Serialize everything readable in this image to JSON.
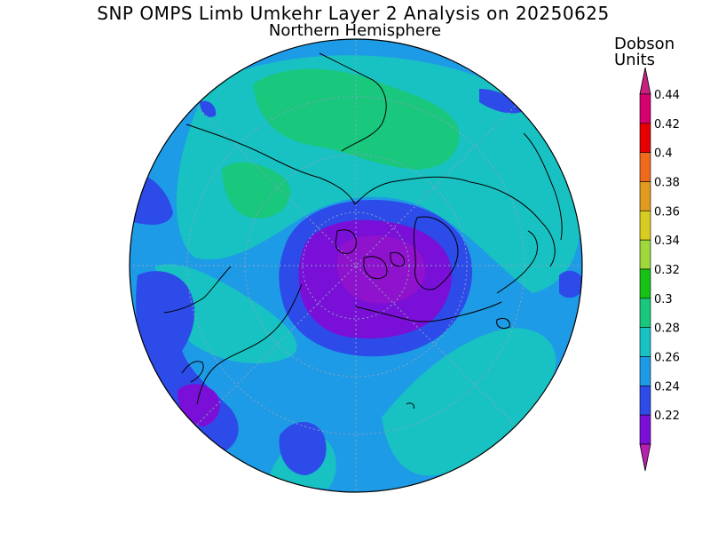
{
  "title": "SNP OMPS Limb Umkehr Layer 2 Analysis on 20250625",
  "subtitle": "Northern Hemisphere",
  "units_line1": "Dobson",
  "units_line2": "Units",
  "colorbar": {
    "levels": [
      {
        "label": "0.44",
        "color": "#d6006f"
      },
      {
        "label": "0.42",
        "color": "#e60000"
      },
      {
        "label": "0.4",
        "color": "#ef6a1a"
      },
      {
        "label": "0.38",
        "color": "#e09a20"
      },
      {
        "label": "0.36",
        "color": "#d8cc20"
      },
      {
        "label": "0.34",
        "color": "#9fd83a"
      },
      {
        "label": "0.32",
        "color": "#16c216"
      },
      {
        "label": "0.3",
        "color": "#19c77d"
      },
      {
        "label": "0.28",
        "color": "#19c2c2"
      },
      {
        "label": "0.26",
        "color": "#1e9be6"
      },
      {
        "label": "0.24",
        "color": "#2c4be8"
      },
      {
        "label": "0.22",
        "color": "#7a10d8"
      }
    ],
    "bottom_color": "#b820b0",
    "top_color": "#c8207f"
  },
  "map": {
    "projection": "north polar stereographic",
    "background_field_color": "#1e9be6",
    "coastline_color": "#000000"
  }
}
